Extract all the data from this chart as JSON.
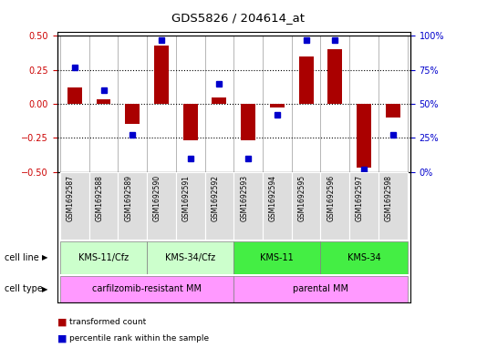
{
  "title": "GDS5826 / 204614_at",
  "samples": [
    "GSM1692587",
    "GSM1692588",
    "GSM1692589",
    "GSM1692590",
    "GSM1692591",
    "GSM1692592",
    "GSM1692593",
    "GSM1692594",
    "GSM1692595",
    "GSM1692596",
    "GSM1692597",
    "GSM1692598"
  ],
  "transformed_count": [
    0.12,
    0.03,
    -0.15,
    0.43,
    -0.27,
    0.05,
    -0.27,
    -0.03,
    0.35,
    0.4,
    -0.47,
    -0.1
  ],
  "percentile_rank": [
    77,
    60,
    27,
    97,
    10,
    65,
    10,
    42,
    97,
    97,
    2,
    27
  ],
  "cell_line_groups": [
    {
      "label": "KMS-11/Cfz",
      "start": 0,
      "end": 3,
      "color": "#ccffcc"
    },
    {
      "label": "KMS-34/Cfz",
      "start": 3,
      "end": 6,
      "color": "#ccffcc"
    },
    {
      "label": "KMS-11",
      "start": 6,
      "end": 9,
      "color": "#44ee44"
    },
    {
      "label": "KMS-34",
      "start": 9,
      "end": 12,
      "color": "#44ee44"
    }
  ],
  "cell_type_groups": [
    {
      "label": "carfilzomib-resistant MM",
      "start": 0,
      "end": 6,
      "color": "#ff99ff"
    },
    {
      "label": "parental MM",
      "start": 6,
      "end": 12,
      "color": "#ff99ff"
    }
  ],
  "bar_color": "#aa0000",
  "dot_color": "#0000cc",
  "ylim_left": [
    -0.5,
    0.5
  ],
  "ylim_right": [
    0,
    100
  ],
  "yticks_left": [
    -0.5,
    -0.25,
    0,
    0.25,
    0.5
  ],
  "yticks_right": [
    0,
    25,
    50,
    75,
    100
  ],
  "hlines": [
    -0.25,
    0,
    0.25
  ],
  "left_yaxis_color": "#cc0000",
  "right_yaxis_color": "#0000cc",
  "sample_bg_color": "#dddddd"
}
